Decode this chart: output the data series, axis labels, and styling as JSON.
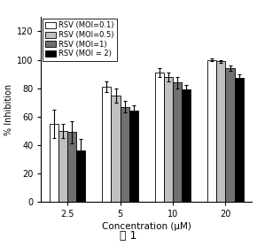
{
  "categories": [
    "2.5",
    "5",
    "10",
    "20"
  ],
  "series": [
    {
      "label": "RSV (MOI=0.1)",
      "color": "#FFFFFF",
      "edgecolor": "#000000",
      "values": [
        55,
        81,
        91,
        100
      ],
      "errors": [
        10,
        4,
        3,
        1
      ]
    },
    {
      "label": "RSV (MOI=0.5)",
      "color": "#C0C0C0",
      "edgecolor": "#000000",
      "values": [
        50,
        75,
        88,
        99
      ],
      "errors": [
        5,
        5,
        3,
        1
      ]
    },
    {
      "label": "RSV (MOI=1)",
      "color": "#707070",
      "edgecolor": "#000000",
      "values": [
        49,
        67,
        84,
        94
      ],
      "errors": [
        8,
        4,
        4,
        2
      ]
    },
    {
      "label": "RSV (MOI = 2)",
      "color": "#000000",
      "edgecolor": "#000000",
      "values": [
        36,
        64,
        79,
        87
      ],
      "errors": [
        8,
        4,
        3,
        3
      ]
    }
  ],
  "ylabel": "% Inhibition",
  "xlabel": "Concentration (μM)",
  "ylim": [
    0,
    130
  ],
  "yticks": [
    0,
    20,
    40,
    60,
    80,
    100,
    120
  ],
  "bar_width": 0.17,
  "figsize": [
    2.9,
    2.78
  ],
  "dpi": 100,
  "caption": "图 1",
  "background_color": "#FFFFFF"
}
